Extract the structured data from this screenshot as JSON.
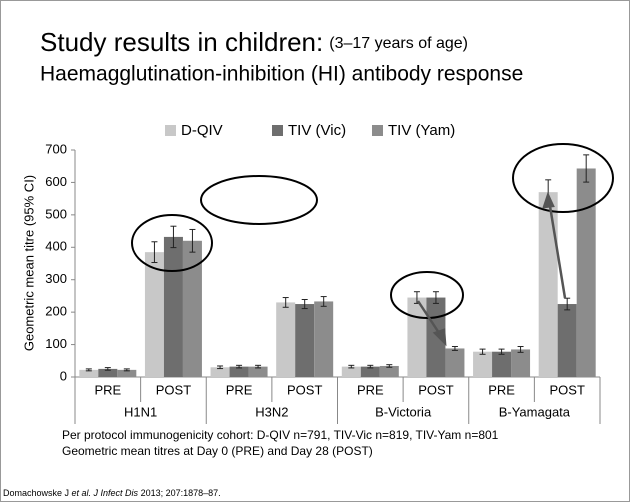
{
  "title": "Study results in children:",
  "title_note": "(3–17 years of age)",
  "subtitle": "Haemagglutination-inhibition (HI) antibody response",
  "chart_data": {
    "type": "bar",
    "ylabel": "Geometric mean titre (95% CI)",
    "categories": [
      "PRE",
      "POST",
      "PRE",
      "POST",
      "PRE",
      "POST",
      "PRE",
      "POST"
    ],
    "groups": [
      "H1N1",
      "H3N2",
      "B-Victoria",
      "B-Yamagata"
    ],
    "series": [
      {
        "name": "D-QIV",
        "color": "#c8c8c8",
        "values": [
          22,
          385,
          30,
          230,
          32,
          245,
          78,
          570
        ],
        "errors": [
          3,
          32,
          4,
          15,
          4,
          18,
          8,
          38
        ]
      },
      {
        "name": "TIV (Vic)",
        "color": "#6e6e6e",
        "values": [
          25,
          432,
          32,
          225,
          32,
          245,
          78,
          225
        ],
        "errors": [
          4,
          33,
          4,
          14,
          4,
          18,
          8,
          18
        ]
      },
      {
        "name": "TIV (Yam)",
        "color": "#8c8c8c",
        "values": [
          22,
          420,
          32,
          233,
          34,
          88,
          85,
          643
        ],
        "errors": [
          3,
          35,
          4,
          15,
          4,
          6,
          9,
          42
        ]
      }
    ],
    "ylim": [
      0,
      700
    ],
    "yticks": [
      0,
      100,
      200,
      300,
      400,
      500,
      600,
      700
    ],
    "grid": false,
    "legend": "top"
  },
  "notes": [
    "Per protocol immunogenicity cohort: D-QIV n=791, TIV-Vic n=819, TIV-Yam n=801",
    "Geometric mean titres at Day 0 (PRE) and Day 28 (POST)"
  ],
  "citation": {
    "author": "Domachowske J ",
    "etal": "et al. J Infect Dis",
    "rest": " 2013; 207:1878–87."
  }
}
